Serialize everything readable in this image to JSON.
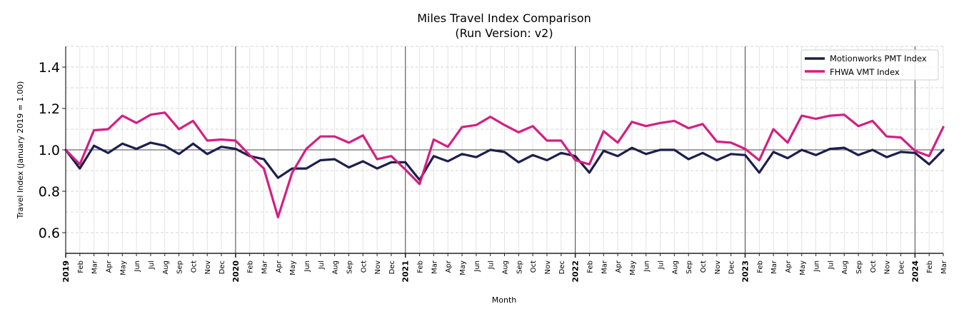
{
  "chart_data": {
    "type": "line",
    "title": "Miles Travel Index Comparison",
    "subtitle": "(Run Version: v2)",
    "xlabel": "Month",
    "ylabel": "Travel Index (January 2019 = 1.00)",
    "ylim": [
      0.5,
      1.5
    ],
    "yticks": [
      0.6,
      0.8,
      1.0,
      1.2,
      1.4
    ],
    "ytick_labels": [
      "0.6",
      "0.8",
      "1.0",
      "1.2",
      "1.4"
    ],
    "reference_line": 1.0,
    "grid": true,
    "legend_position": "upper right",
    "x": [
      "2019",
      "Feb",
      "Mar",
      "Apr",
      "May",
      "Jun",
      "Jul",
      "Aug",
      "Sep",
      "Oct",
      "Nov",
      "Dec",
      "2020",
      "Feb",
      "Mar",
      "Apr",
      "May",
      "Jun",
      "Jul",
      "Aug",
      "Sep",
      "Oct",
      "Nov",
      "Dec",
      "2021",
      "Feb",
      "Mar",
      "Apr",
      "May",
      "Jun",
      "Jul",
      "Aug",
      "Sep",
      "Oct",
      "Nov",
      "Dec",
      "2022",
      "Feb",
      "Mar",
      "Apr",
      "May",
      "Jun",
      "Jul",
      "Aug",
      "Sep",
      "Oct",
      "Nov",
      "Dec",
      "2023",
      "Feb",
      "Mar",
      "Apr",
      "May",
      "Jun",
      "Jul",
      "Aug",
      "Sep",
      "Oct",
      "Nov",
      "Dec",
      "2024",
      "Feb",
      "Mar"
    ],
    "year_labels": [
      "2019",
      "2020",
      "2021",
      "2022",
      "2023",
      "2024"
    ],
    "series": [
      {
        "name": "Motionworks PMT Index",
        "color": "#1c1f4d",
        "values": [
          1.0,
          0.91,
          1.02,
          0.985,
          1.03,
          1.005,
          1.035,
          1.02,
          0.98,
          1.03,
          0.98,
          1.015,
          1.005,
          0.97,
          0.955,
          0.865,
          0.91,
          0.91,
          0.95,
          0.955,
          0.915,
          0.945,
          0.91,
          0.94,
          0.94,
          0.855,
          0.97,
          0.945,
          0.98,
          0.965,
          1.0,
          0.99,
          0.94,
          0.975,
          0.95,
          0.985,
          0.97,
          0.89,
          0.995,
          0.97,
          1.01,
          0.98,
          1.0,
          1.0,
          0.955,
          0.985,
          0.95,
          0.98,
          0.975,
          0.89,
          0.99,
          0.96,
          1.0,
          0.975,
          1.005,
          1.01,
          0.975,
          1.0,
          0.965,
          0.99,
          0.985,
          0.93,
          1.0
        ]
      },
      {
        "name": "FHWA VMT Index",
        "color": "#d31f82",
        "values": [
          1.0,
          0.93,
          1.095,
          1.1,
          1.165,
          1.13,
          1.17,
          1.18,
          1.1,
          1.14,
          1.045,
          1.05,
          1.045,
          0.975,
          0.91,
          0.675,
          0.89,
          1.005,
          1.065,
          1.065,
          1.035,
          1.07,
          0.955,
          0.97,
          0.905,
          0.835,
          1.05,
          1.015,
          1.11,
          1.12,
          1.16,
          1.12,
          1.085,
          1.115,
          1.045,
          1.045,
          0.95,
          0.93,
          1.09,
          1.035,
          1.135,
          1.115,
          1.13,
          1.14,
          1.105,
          1.125,
          1.04,
          1.035,
          1.005,
          0.95,
          1.1,
          1.035,
          1.165,
          1.15,
          1.165,
          1.17,
          1.115,
          1.14,
          1.065,
          1.06,
          0.995,
          0.97,
          1.11
        ]
      }
    ]
  }
}
